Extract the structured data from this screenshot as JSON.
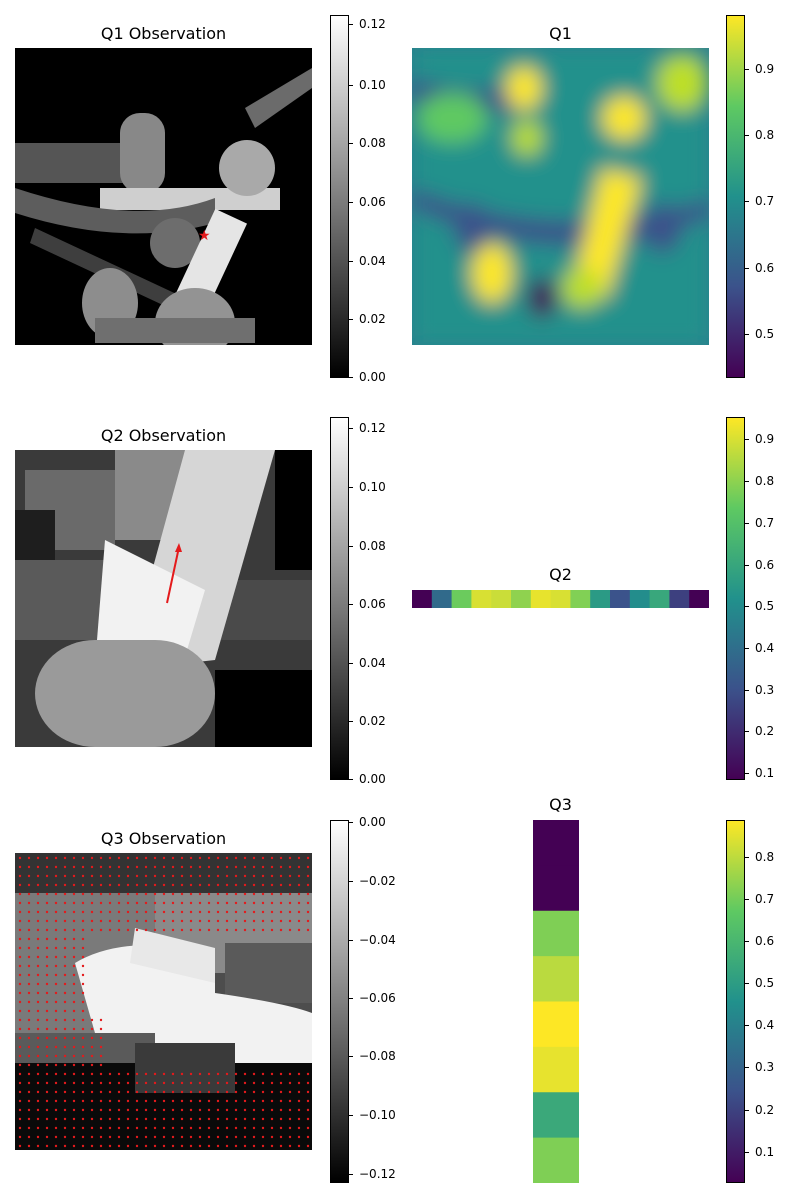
{
  "colors": {
    "marker": "#e41a1c",
    "viridis": [
      "#440154",
      "#3b528b",
      "#21918c",
      "#5ec962",
      "#fde725"
    ]
  },
  "panels": [
    {
      "title": "Q1 Observation",
      "kind": "depth",
      "colorbar": {
        "ticks": [
          "0.12",
          "0.10",
          "0.08",
          "0.06",
          "0.04",
          "0.02",
          "0.00"
        ],
        "cmap": "gray"
      }
    },
    {
      "title": "Q1",
      "kind": "heatmap",
      "colorbar": {
        "ticks": [
          "0.9",
          "0.8",
          "0.7",
          "0.6",
          "0.5"
        ],
        "cmap": "viridis"
      }
    },
    {
      "title": "Q2 Observation",
      "kind": "depth",
      "colorbar": {
        "ticks": [
          "0.12",
          "0.10",
          "0.08",
          "0.06",
          "0.04",
          "0.02",
          "0.00"
        ],
        "cmap": "gray"
      }
    },
    {
      "title": "Q2",
      "kind": "strip",
      "colorbar": {
        "ticks": [
          "0.9",
          "0.8",
          "0.7",
          "0.6",
          "0.5",
          "0.4",
          "0.3",
          "0.2",
          "0.1"
        ],
        "cmap": "viridis"
      }
    },
    {
      "title": "Q3 Observation",
      "kind": "depth",
      "colorbar": {
        "ticks": [
          "0.00",
          "−0.02",
          "−0.04",
          "−0.06",
          "−0.08",
          "−0.10",
          "−0.12"
        ],
        "cmap": "gray"
      }
    },
    {
      "title": "Q3",
      "kind": "column",
      "colorbar": {
        "ticks": [
          "0.8",
          "0.7",
          "0.6",
          "0.5",
          "0.4",
          "0.3",
          "0.2",
          "0.1"
        ],
        "cmap": "viridis"
      }
    }
  ],
  "chart_data": [
    {
      "type": "heatmap",
      "title": "Q1 Observation",
      "colorbar_range": [
        0.0,
        0.123
      ],
      "annotations": [
        "star marker"
      ]
    },
    {
      "type": "heatmap",
      "title": "Q1",
      "colorbar_range": [
        0.44,
        0.98
      ]
    },
    {
      "type": "heatmap",
      "title": "Q2 Observation",
      "colorbar_range": [
        0.0,
        0.123
      ],
      "annotations": [
        "arrow"
      ]
    },
    {
      "type": "heatmap",
      "title": "Q2",
      "colorbar_range": [
        0.08,
        0.95
      ],
      "values": [
        0.08,
        0.38,
        0.75,
        0.9,
        0.88,
        0.8,
        0.92,
        0.9,
        0.78,
        0.55,
        0.3,
        0.5,
        0.6,
        0.25,
        0.08
      ]
    },
    {
      "type": "heatmap",
      "title": "Q3 Observation",
      "colorbar_range": [
        -0.123,
        0.0
      ],
      "annotations": [
        "red dot grid"
      ]
    },
    {
      "type": "heatmap",
      "title": "Q3",
      "colorbar_range": [
        0.03,
        0.89
      ],
      "values": [
        0.03,
        0.03,
        0.72,
        0.8,
        0.89,
        0.86,
        0.55,
        0.72
      ]
    }
  ]
}
